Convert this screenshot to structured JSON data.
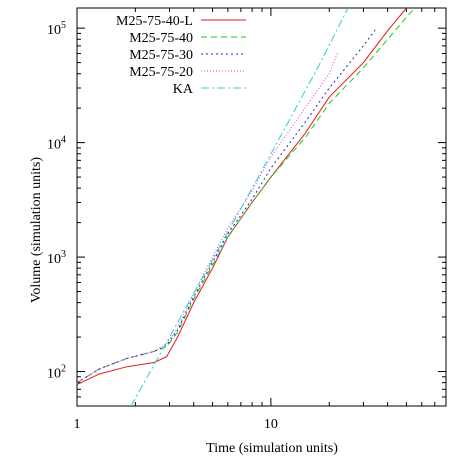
{
  "chart_data": {
    "type": "line",
    "title": "",
    "xlabel": "Time (simulation units)",
    "ylabel": "Volume (simulation units)",
    "x_scale": "log",
    "y_scale": "log",
    "xlim": [
      1,
      80
    ],
    "ylim": [
      50,
      150000
    ],
    "grid": false,
    "legend_position": "top-left",
    "x_ticks": [
      {
        "value": 1,
        "label": "1"
      },
      {
        "value": 10,
        "label": "10"
      }
    ],
    "y_ticks": [
      {
        "value": 100,
        "label": "10",
        "exp": "2"
      },
      {
        "value": 1000,
        "label": "10",
        "exp": "3"
      },
      {
        "value": 10000,
        "label": "10",
        "exp": "4"
      },
      {
        "value": 100000,
        "label": "10",
        "exp": "5"
      }
    ],
    "series": [
      {
        "name": "M25-75-40-L",
        "color": "#e8191d",
        "dash": "solid",
        "points": [
          [
            1,
            77
          ],
          [
            1.3,
            95
          ],
          [
            1.8,
            110
          ],
          [
            2.5,
            120
          ],
          [
            2.9,
            135
          ],
          [
            3.3,
            200
          ],
          [
            4,
            400
          ],
          [
            5,
            800
          ],
          [
            6,
            1500
          ],
          [
            8,
            3000
          ],
          [
            10,
            5000
          ],
          [
            15,
            12000
          ],
          [
            20,
            25000
          ],
          [
            30,
            50000
          ],
          [
            40,
            95000
          ],
          [
            50,
            150000
          ]
        ]
      },
      {
        "name": "M25-75-40",
        "color": "#1bcc1b",
        "dash": "6,4",
        "points": [
          [
            1,
            80
          ],
          [
            1.3,
            105
          ],
          [
            1.8,
            130
          ],
          [
            2.5,
            150
          ],
          [
            2.9,
            165
          ],
          [
            3.3,
            220
          ],
          [
            4,
            430
          ],
          [
            5,
            850
          ],
          [
            6,
            1500
          ],
          [
            8,
            3000
          ],
          [
            10,
            5000
          ],
          [
            15,
            11000
          ],
          [
            20,
            22000
          ],
          [
            30,
            45000
          ],
          [
            40,
            80000
          ],
          [
            55,
            150000
          ]
        ]
      },
      {
        "name": "M25-75-30",
        "color": "#1f2ab6",
        "dash": "2,3",
        "points": [
          [
            1,
            80
          ],
          [
            1.3,
            105
          ],
          [
            1.8,
            130
          ],
          [
            2.5,
            150
          ],
          [
            2.9,
            170
          ],
          [
            3.3,
            230
          ],
          [
            4,
            450
          ],
          [
            5,
            900
          ],
          [
            6,
            1600
          ],
          [
            8,
            3200
          ],
          [
            10,
            6000
          ],
          [
            15,
            15000
          ],
          [
            20,
            30000
          ],
          [
            30,
            70000
          ],
          [
            35,
            100000
          ]
        ]
      },
      {
        "name": "M25-75-20",
        "color": "#e13be0",
        "dash": "1,2",
        "points": [
          [
            1,
            80
          ],
          [
            1.3,
            105
          ],
          [
            1.8,
            130
          ],
          [
            2.5,
            150
          ],
          [
            2.9,
            175
          ],
          [
            3.3,
            240
          ],
          [
            4,
            480
          ],
          [
            5,
            1000
          ],
          [
            6,
            1800
          ],
          [
            8,
            3800
          ],
          [
            10,
            7500
          ],
          [
            15,
            20000
          ],
          [
            20,
            40000
          ],
          [
            22,
            60000
          ]
        ]
      },
      {
        "name": "KA",
        "color": "#2ccfcf",
        "dash": "8,3,2,3",
        "points": [
          [
            1.9,
            50
          ],
          [
            3,
            200
          ],
          [
            5,
            950
          ],
          [
            8,
            4000
          ],
          [
            12,
            14000
          ],
          [
            18,
            50000
          ],
          [
            25,
            150000
          ]
        ]
      }
    ]
  }
}
